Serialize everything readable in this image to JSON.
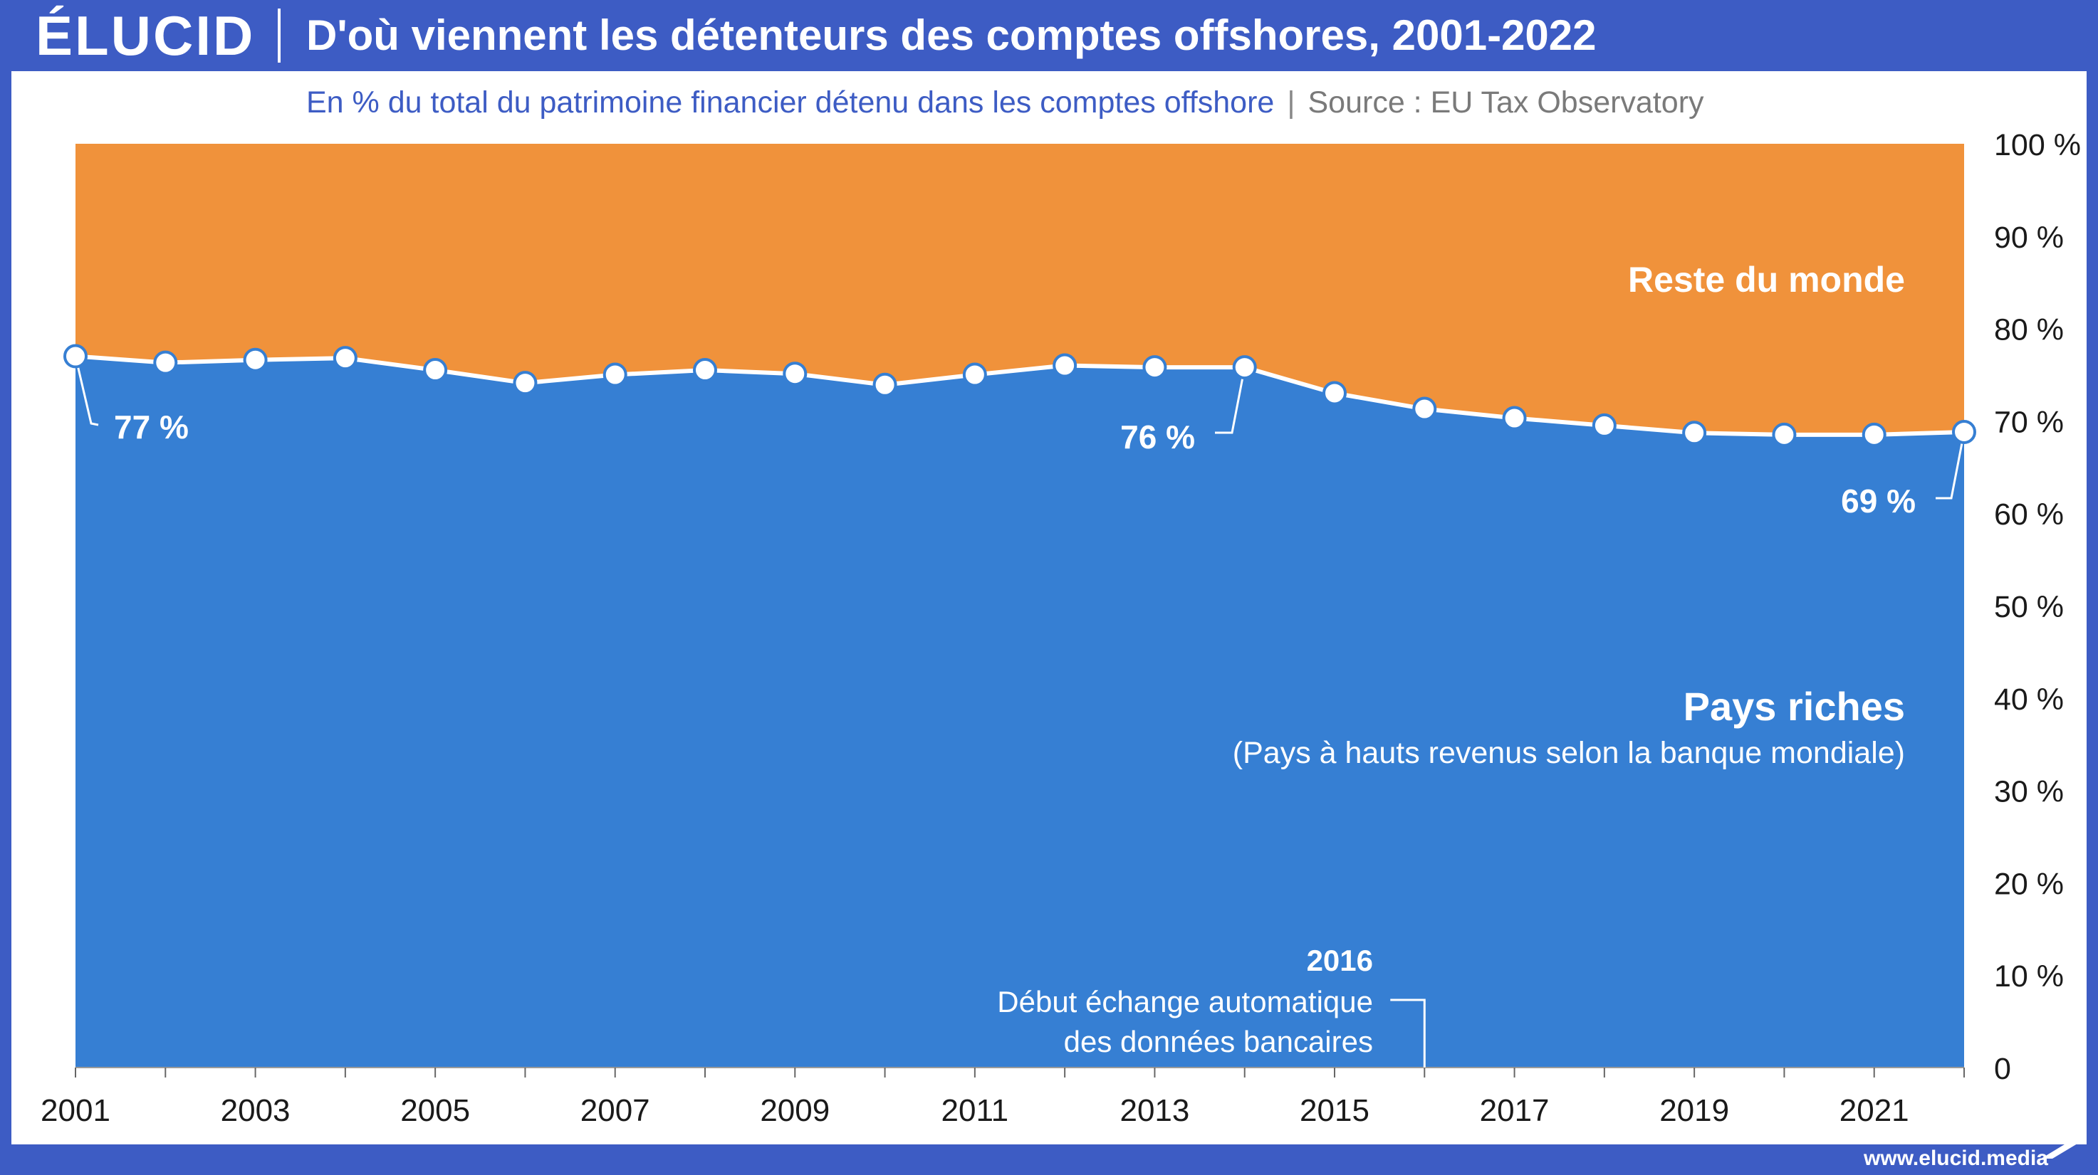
{
  "header": {
    "logo": "ÉLUCID",
    "title": "D'où viennent les détenteurs des comptes offshores, 2001-2022",
    "subtitle": "En % du total du patrimoine financier détenu dans les comptes offshore",
    "separator": "|",
    "source": "Source : EU Tax Observatory"
  },
  "footer": {
    "url": "www.elucid.media"
  },
  "colors": {
    "frame": "#3d5cc4",
    "rich": "#367fd3",
    "rest": "#f0923b",
    "point": "#ffffff"
  },
  "chart_data": {
    "type": "area",
    "stacked": true,
    "x": [
      2001,
      2002,
      2003,
      2004,
      2005,
      2006,
      2007,
      2008,
      2009,
      2010,
      2011,
      2012,
      2013,
      2014,
      2015,
      2016,
      2017,
      2018,
      2019,
      2020,
      2021,
      2022
    ],
    "xticks": [
      "2001",
      "2003",
      "2005",
      "2007",
      "2009",
      "2011",
      "2013",
      "2015",
      "2017",
      "2019",
      "2021"
    ],
    "yticks": [
      "0",
      "10 %",
      "20 %",
      "30 %",
      "40 %",
      "50 %",
      "60 %",
      "70 %",
      "80 %",
      "90 %",
      "100 %"
    ],
    "ylim": [
      0,
      100
    ],
    "series": [
      {
        "name": "Pays riches",
        "values": [
          77.0,
          76.3,
          76.6,
          76.8,
          75.5,
          74.1,
          75.0,
          75.5,
          75.1,
          73.9,
          75.0,
          76.0,
          75.8,
          75.8,
          73.0,
          71.3,
          70.3,
          69.5,
          68.7,
          68.5,
          68.5,
          68.8
        ]
      },
      {
        "name": "Reste du monde",
        "values": [
          23.0,
          23.7,
          23.4,
          23.2,
          24.5,
          25.9,
          25.0,
          24.5,
          24.9,
          26.1,
          25.0,
          24.0,
          24.2,
          24.2,
          27.0,
          28.7,
          29.7,
          30.5,
          31.3,
          31.5,
          31.5,
          31.2
        ]
      }
    ],
    "labels": {
      "rest": "Reste du monde",
      "rich": "Pays riches",
      "rich_note": "(Pays à hauts revenus selon la banque mondiale)"
    },
    "point_labels": [
      {
        "text": "77 %",
        "year": 2001
      },
      {
        "text": "76 %",
        "year": 2014
      },
      {
        "text": "69 %",
        "year": 2022
      }
    ],
    "annotation": {
      "year_label": "2016",
      "line1": "Début échange automatique",
      "line2": "des données bancaires",
      "year": 2016
    }
  }
}
